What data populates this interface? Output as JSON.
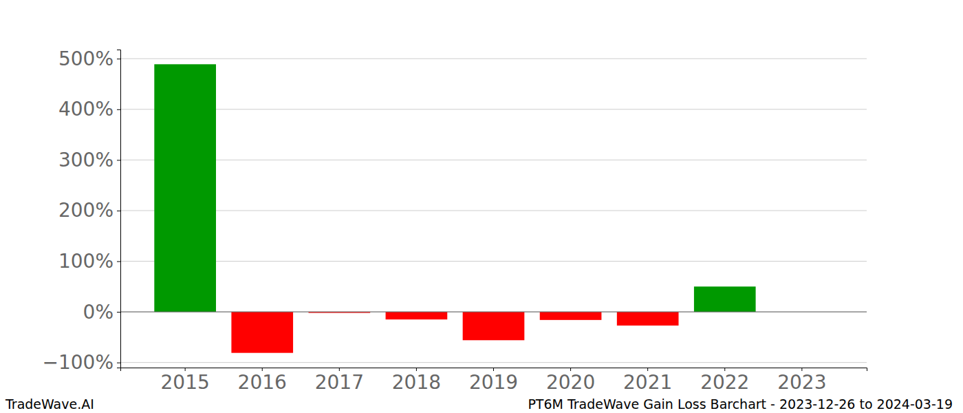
{
  "chart_data": {
    "type": "bar",
    "title": "PT6M TradeWave Gain Loss Barchart - 2023-12-26 to 2024-03-19",
    "annotations": [
      "TradeWave.AI"
    ],
    "categories": [
      "2015",
      "2016",
      "2017",
      "2018",
      "2019",
      "2020",
      "2021",
      "2022",
      "2023"
    ],
    "values": [
      489,
      -81,
      -2,
      -15,
      -56,
      -16,
      -27,
      50,
      0
    ],
    "colors": [
      "#009900",
      "#ff0000",
      "#ff0000",
      "#ff0000",
      "#ff0000",
      "#ff0000",
      "#ff0000",
      "#009900",
      "#ff0000"
    ],
    "ylim": [
      -110,
      518
    ],
    "yticks": [
      {
        "value": -100,
        "label": "−100%"
      },
      {
        "value": 0,
        "label": "0%"
      },
      {
        "value": 100,
        "label": "100%"
      },
      {
        "value": 200,
        "label": "200%"
      },
      {
        "value": 300,
        "label": "300%"
      },
      {
        "value": 400,
        "label": "400%"
      },
      {
        "value": 500,
        "label": "500%"
      }
    ],
    "grid": true
  }
}
